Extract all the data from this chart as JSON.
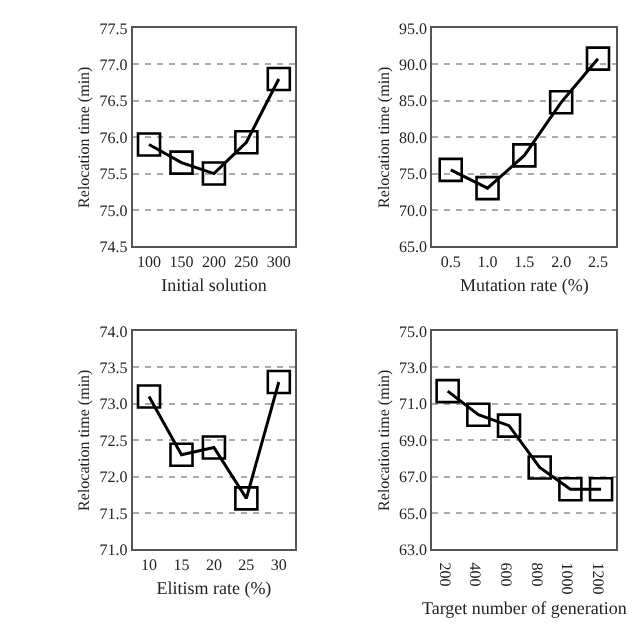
{
  "chart_data": [
    {
      "type": "line",
      "xlabel": "Initial solution",
      "ylabel": "Relocation time (min)",
      "categories": [
        "100",
        "150",
        "200",
        "250",
        "300"
      ],
      "series": [
        {
          "color": "#000000",
          "values": [
            75.9,
            75.65,
            75.5,
            75.93,
            76.8
          ]
        }
      ],
      "ylim": [
        74.5,
        77.5
      ],
      "yticks": [
        74.5,
        {
          "value": 75,
          "label": "75.0"
        },
        75.5,
        {
          "value": 76,
          "label": "76.0"
        },
        76.5,
        {
          "value": 77,
          "label": "77.0"
        },
        77.5
      ],
      "grid": "y",
      "marker": "square",
      "line_style": "solid"
    },
    {
      "type": "line",
      "xlabel": "Mutation rate (%)",
      "ylabel": "Relocation time (min)",
      "categories": [
        "0.5",
        "1.0",
        "1.5",
        "2.0",
        "2.5"
      ],
      "series": [
        {
          "color": "#000000",
          "values": [
            75.5,
            73.0,
            77.5,
            84.8,
            90.8
          ]
        }
      ],
      "ylim": [
        65,
        95
      ],
      "yticks": [
        {
          "value": 65,
          "label": "65.0"
        },
        {
          "value": 70,
          "label": "70.0"
        },
        {
          "value": 75,
          "label": "75.0"
        },
        {
          "value": 80,
          "label": "80.0"
        },
        {
          "value": 85,
          "label": "85.0"
        },
        {
          "value": 90,
          "label": "90.0"
        },
        {
          "value": 95,
          "label": "95.0"
        }
      ],
      "grid": "y",
      "marker": "square",
      "line_style": "solid"
    },
    {
      "type": "line",
      "xlabel": "Elitism rate (%)",
      "ylabel": "Relocation time (min)",
      "categories": [
        "10",
        "15",
        "20",
        "25",
        "30"
      ],
      "series": [
        {
          "color": "#000000",
          "values": [
            73.1,
            72.3,
            72.4,
            71.7,
            73.3
          ]
        }
      ],
      "ylim": [
        71,
        74
      ],
      "yticks": [
        {
          "value": 71,
          "label": "71.0"
        },
        71.5,
        {
          "value": 72,
          "label": "72.0"
        },
        72.5,
        {
          "value": 73,
          "label": "73.0"
        },
        73.5,
        {
          "value": 74,
          "label": "74.0"
        }
      ],
      "grid": "y",
      "marker": "square",
      "line_style": "solid"
    },
    {
      "type": "line",
      "xlabel": "Target number of generation",
      "ylabel": "Relocation time (min)",
      "categories": [
        "200",
        "400",
        "600",
        "800",
        "1000",
        "1200"
      ],
      "series": [
        {
          "color": "#000000",
          "values": [
            71.7,
            70.4,
            69.8,
            67.5,
            66.3,
            66.3
          ]
        }
      ],
      "ylim": [
        63,
        75
      ],
      "yticks": [
        {
          "value": 63,
          "label": "63.0"
        },
        {
          "value": 65,
          "label": "65.0"
        },
        {
          "value": 67,
          "label": "67.0"
        },
        {
          "value": 69,
          "label": "69.0"
        },
        {
          "value": 71,
          "label": "71.0"
        },
        {
          "value": 73,
          "label": "73.0"
        },
        {
          "value": 75,
          "label": "75.0"
        }
      ],
      "grid": "y",
      "marker": "square",
      "line_style": "solid"
    }
  ]
}
